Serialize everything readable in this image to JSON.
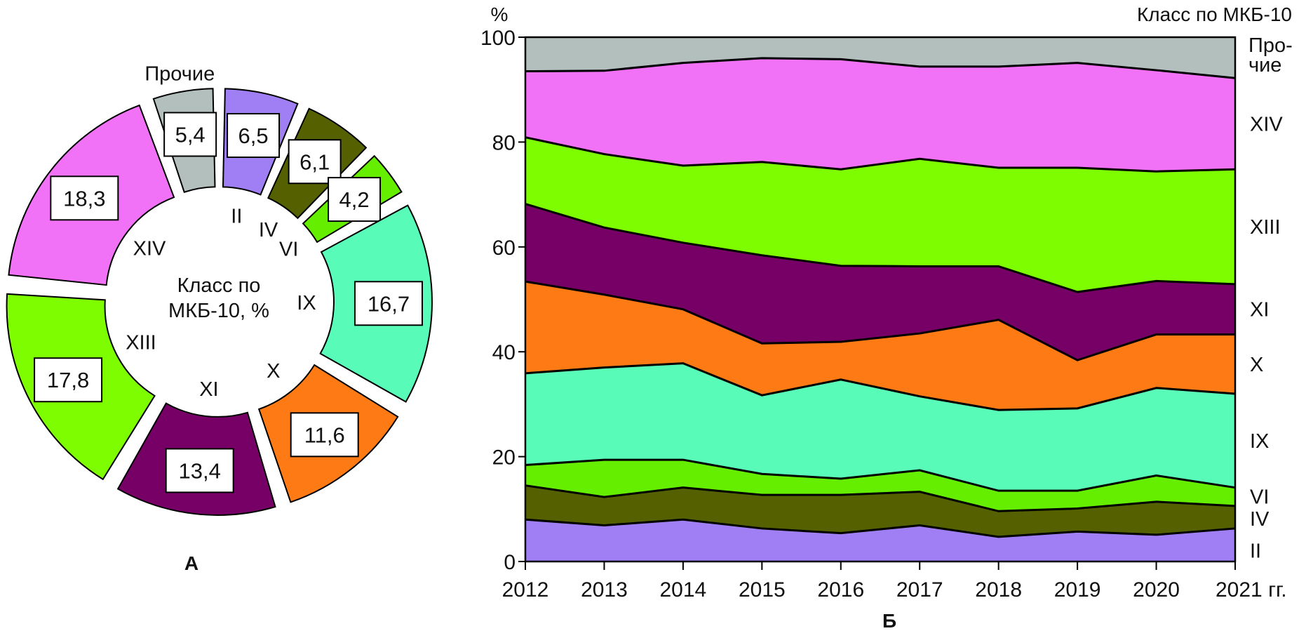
{
  "chart_data": [
    {
      "type": "pie",
      "variant": "exploded-donut",
      "panel_label": "А",
      "center_label_lines": [
        "Класс по",
        "МКБ-10, %"
      ],
      "slices": [
        {
          "label": "II",
          "value": 6.5,
          "value_text": "6,5",
          "color": "#a07ff5"
        },
        {
          "label": "IV",
          "value": 6.1,
          "value_text": "6,1",
          "color": "#556100"
        },
        {
          "label": "VI",
          "value": 4.2,
          "value_text": "4,2",
          "color": "#66ee00"
        },
        {
          "label": "IX",
          "value": 16.7,
          "value_text": "16,7",
          "color": "#58fcb8"
        },
        {
          "label": "X",
          "value": 11.6,
          "value_text": "11,6",
          "color": "#fd7a14"
        },
        {
          "label": "XI",
          "value": 13.4,
          "value_text": "13,4",
          "color": "#760066"
        },
        {
          "label": "XIII",
          "value": 17.8,
          "value_text": "17,8",
          "color": "#7efc00"
        },
        {
          "label": "XIV",
          "value": 18.3,
          "value_text": "18,3",
          "color": "#f272f7"
        },
        {
          "label": "Прочие",
          "value": 5.4,
          "value_text": "5,4",
          "color": "#b2bfbc"
        }
      ],
      "start": "top",
      "direction": "clockwise"
    },
    {
      "type": "area",
      "stacked": true,
      "panel_label": "Б",
      "title": "",
      "legend_title": "Класс по МКБ-10",
      "legend_placement": "right",
      "ylabel": "%",
      "xlabel_suffix": "гг.",
      "x": [
        2012,
        2013,
        2014,
        2015,
        2016,
        2017,
        2018,
        2019,
        2020,
        2021
      ],
      "x_tick_labels": [
        "2012",
        "2013",
        "2014",
        "2015",
        "2016",
        "2017",
        "2018",
        "2019",
        "2020",
        "2021 гг."
      ],
      "ylim": [
        0,
        100
      ],
      "y_ticks": [
        0,
        20,
        40,
        60,
        80,
        100
      ],
      "grid": false,
      "series": [
        {
          "name": "II",
          "legend_label": "II",
          "color": "#a07ff5",
          "values": [
            8.0,
            6.9,
            8.0,
            6.3,
            5.4,
            6.9,
            4.7,
            5.7,
            5.1,
            6.3
          ]
        },
        {
          "name": "IV",
          "legend_label": "IV",
          "color": "#556100",
          "values": [
            6.5,
            5.4,
            6.1,
            6.4,
            7.3,
            6.4,
            4.9,
            4.4,
            6.3,
            4.3
          ]
        },
        {
          "name": "VI",
          "legend_label": "VI",
          "color": "#66ee00",
          "values": [
            3.9,
            7.1,
            5.3,
            4.0,
            3.1,
            4.1,
            3.9,
            3.4,
            5.0,
            3.5
          ]
        },
        {
          "name": "IX",
          "legend_label": "IX",
          "color": "#58fcb8",
          "values": [
            17.5,
            17.6,
            18.4,
            15.0,
            18.9,
            14.1,
            15.4,
            15.7,
            16.7,
            17.9
          ]
        },
        {
          "name": "X",
          "legend_label": "X",
          "color": "#fd7a14",
          "values": [
            17.5,
            13.9,
            10.3,
            9.9,
            7.2,
            12.0,
            17.2,
            9.2,
            10.2,
            11.3
          ]
        },
        {
          "name": "XI",
          "legend_label": "XI",
          "color": "#760066",
          "values": [
            14.8,
            12.8,
            12.7,
            16.8,
            14.5,
            12.8,
            10.2,
            13.0,
            10.2,
            9.6
          ]
        },
        {
          "name": "XIII",
          "legend_label": "XIII",
          "color": "#7efc00",
          "values": [
            12.7,
            14.0,
            14.7,
            17.8,
            18.4,
            20.5,
            18.8,
            23.7,
            20.9,
            21.9
          ]
        },
        {
          "name": "XIV",
          "legend_label": "XIV",
          "color": "#f272f7",
          "values": [
            12.6,
            15.9,
            19.6,
            19.8,
            21.0,
            17.6,
            19.3,
            20.0,
            19.3,
            17.4
          ]
        },
        {
          "name": "Прочие",
          "legend_label": [
            "Про-",
            "чие"
          ],
          "color": "#b2bfbc",
          "values": [
            6.5,
            6.4,
            4.9,
            4.0,
            4.2,
            5.6,
            5.6,
            4.9,
            6.3,
            7.8
          ]
        }
      ]
    }
  ]
}
